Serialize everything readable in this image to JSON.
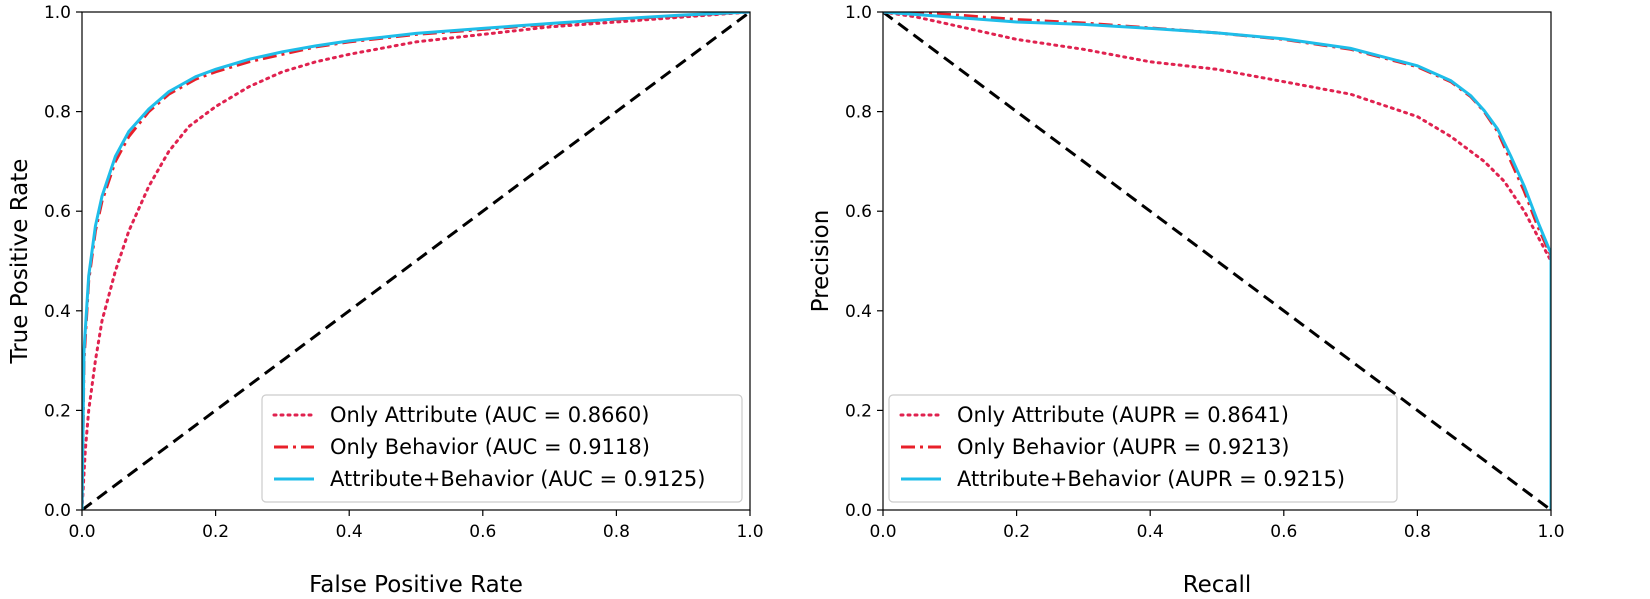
{
  "colors": {
    "only_attribute": "#e0224f",
    "only_behavior": "#e8202a",
    "attribute_behavior": "#1ebde9",
    "baseline": "#000000",
    "legend_border": "#cccccc"
  },
  "chart_data": [
    {
      "type": "line",
      "title": "",
      "xlabel": "False Positive Rate",
      "ylabel": "True Positive Rate",
      "xlim": [
        0.0,
        1.0
      ],
      "ylim": [
        0.0,
        1.0
      ],
      "xticks": [
        "0.0",
        "0.2",
        "0.4",
        "0.6",
        "0.8",
        "1.0"
      ],
      "yticks": [
        "0.0",
        "0.2",
        "0.4",
        "0.6",
        "0.8",
        "1.0"
      ],
      "grid": false,
      "legend_position": "lower-right",
      "baseline": {
        "x": [
          0,
          1
        ],
        "y": [
          0,
          1
        ],
        "style": "dashed"
      },
      "series": [
        {
          "name": "Only Attribute (AUC = 0.8660)",
          "style": "dotted",
          "color_key": "only_attribute",
          "x": [
            0,
            0.005,
            0.01,
            0.02,
            0.03,
            0.05,
            0.07,
            0.1,
            0.13,
            0.16,
            0.2,
            0.25,
            0.3,
            0.35,
            0.4,
            0.5,
            0.6,
            0.7,
            0.8,
            0.9,
            1.0
          ],
          "y": [
            0,
            0.12,
            0.2,
            0.3,
            0.38,
            0.48,
            0.56,
            0.65,
            0.72,
            0.77,
            0.81,
            0.85,
            0.88,
            0.9,
            0.915,
            0.94,
            0.955,
            0.97,
            0.98,
            0.99,
            1.0
          ]
        },
        {
          "name": "Only Behavior (AUC = 0.9118)",
          "style": "dashdot",
          "color_key": "only_behavior",
          "x": [
            0,
            0.003,
            0.01,
            0.02,
            0.03,
            0.05,
            0.07,
            0.1,
            0.13,
            0.17,
            0.2,
            0.25,
            0.3,
            0.35,
            0.4,
            0.5,
            0.6,
            0.7,
            0.8,
            0.9,
            1.0
          ],
          "y": [
            0,
            0.3,
            0.46,
            0.56,
            0.62,
            0.7,
            0.75,
            0.8,
            0.835,
            0.865,
            0.88,
            0.9,
            0.915,
            0.93,
            0.94,
            0.955,
            0.965,
            0.975,
            0.985,
            0.993,
            1.0
          ]
        },
        {
          "name": "Attribute+Behavior (AUC = 0.9125)",
          "style": "solid",
          "color_key": "attribute_behavior",
          "x": [
            0,
            0.003,
            0.01,
            0.02,
            0.03,
            0.05,
            0.07,
            0.1,
            0.13,
            0.17,
            0.2,
            0.25,
            0.3,
            0.35,
            0.4,
            0.5,
            0.6,
            0.7,
            0.8,
            0.9,
            1.0
          ],
          "y": [
            0,
            0.32,
            0.47,
            0.57,
            0.63,
            0.71,
            0.76,
            0.805,
            0.84,
            0.87,
            0.885,
            0.905,
            0.92,
            0.932,
            0.942,
            0.957,
            0.967,
            0.977,
            0.986,
            0.994,
            1.0
          ]
        }
      ]
    },
    {
      "type": "line",
      "title": "",
      "xlabel": "Recall",
      "ylabel": "Precision",
      "xlim": [
        0.0,
        1.0
      ],
      "ylim": [
        0.0,
        1.0
      ],
      "xticks": [
        "0.0",
        "0.2",
        "0.4",
        "0.6",
        "0.8",
        "1.0"
      ],
      "yticks": [
        "0.0",
        "0.2",
        "0.4",
        "0.6",
        "0.8",
        "1.0"
      ],
      "grid": false,
      "legend_position": "lower-left",
      "baseline": {
        "x": [
          0,
          1
        ],
        "y": [
          1,
          0
        ],
        "style": "dashed"
      },
      "series": [
        {
          "name": "Only Attribute (AUPR = 0.8641)",
          "style": "dotted",
          "color_key": "only_attribute",
          "x": [
            0,
            0.05,
            0.1,
            0.15,
            0.2,
            0.3,
            0.4,
            0.5,
            0.6,
            0.7,
            0.8,
            0.85,
            0.9,
            0.93,
            0.96,
            0.98,
            1.0
          ],
          "y": [
            1.0,
            0.99,
            0.975,
            0.96,
            0.945,
            0.925,
            0.9,
            0.885,
            0.86,
            0.835,
            0.79,
            0.75,
            0.7,
            0.66,
            0.6,
            0.55,
            0.5
          ],
          "endpoint_drop_to": 0.0
        },
        {
          "name": "Only Behavior (AUPR = 0.9213)",
          "style": "dashdot",
          "color_key": "only_behavior",
          "x": [
            0,
            0.1,
            0.2,
            0.3,
            0.4,
            0.5,
            0.6,
            0.7,
            0.8,
            0.85,
            0.88,
            0.9,
            0.92,
            0.94,
            0.96,
            0.98,
            1.0
          ],
          "y": [
            1.0,
            0.995,
            0.985,
            0.978,
            0.968,
            0.958,
            0.945,
            0.925,
            0.89,
            0.86,
            0.83,
            0.8,
            0.76,
            0.7,
            0.64,
            0.57,
            0.51
          ],
          "endpoint_drop_to": 0.0
        },
        {
          "name": "Attribute+Behavior (AUPR = 0.9215)",
          "style": "solid",
          "color_key": "attribute_behavior",
          "x": [
            0,
            0.1,
            0.2,
            0.3,
            0.4,
            0.5,
            0.6,
            0.7,
            0.8,
            0.85,
            0.88,
            0.9,
            0.92,
            0.94,
            0.96,
            0.98,
            1.0
          ],
          "y": [
            1.0,
            0.99,
            0.98,
            0.975,
            0.967,
            0.958,
            0.946,
            0.927,
            0.892,
            0.862,
            0.832,
            0.802,
            0.765,
            0.71,
            0.65,
            0.58,
            0.515
          ],
          "endpoint_drop_to": 0.0
        }
      ]
    }
  ]
}
